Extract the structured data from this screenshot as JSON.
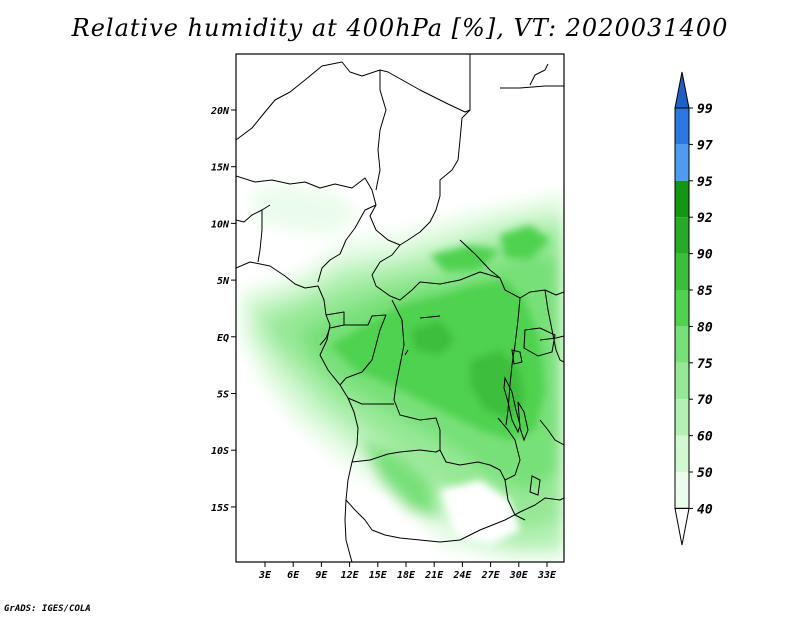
{
  "title": "Relative humidity at 400hPa [%], VT: 2020031400",
  "credit": "GrADS: IGES/COLA",
  "map": {
    "lat_labels": [
      "20N",
      "15N",
      "10N",
      "5N",
      "EQ",
      "5S",
      "10S",
      "15S"
    ],
    "lon_labels": [
      "3E",
      "6E",
      "9E",
      "12E",
      "15E",
      "18E",
      "21E",
      "24E",
      "27E",
      "30E",
      "33E"
    ]
  },
  "colorbar": {
    "levels": [
      "99",
      "97",
      "95",
      "92",
      "90",
      "85",
      "80",
      "75",
      "70",
      "60",
      "50",
      "40"
    ],
    "colors": {
      "above_99": "#1e5fc8",
      "97_99": "#2a78e0",
      "95_97": "#4d9cf0",
      "92_95": "#149614",
      "90_92": "#28aa28",
      "85_90": "#3cbe3c",
      "80_85": "#50d250",
      "75_80": "#78e078",
      "70_75": "#96e896",
      "60_70": "#b4f0b4",
      "50_60": "#d2f8d2",
      "40_50": "#ecfcec",
      "below_40": "#ffffff"
    }
  }
}
